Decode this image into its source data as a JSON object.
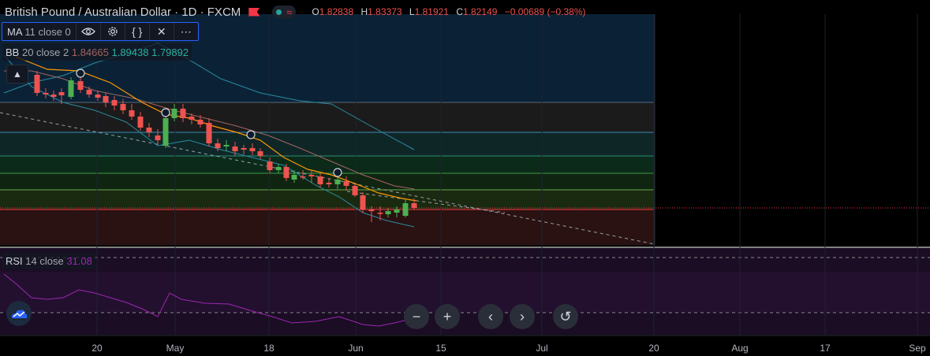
{
  "header": {
    "title": "British Pound / Australian Dollar · 1D · FXCM",
    "ohlc": [
      {
        "k": "O",
        "v": "1.82838"
      },
      {
        "k": "H",
        "v": "1.83373"
      },
      {
        "k": "L",
        "v": "1.81921"
      },
      {
        "k": "C",
        "v": "1.82149"
      }
    ],
    "change": "−0.00689 (−0.38%)"
  },
  "indicators": {
    "ma": {
      "name": "MA",
      "params": "11 close 0"
    },
    "bb": {
      "name": "BB",
      "params": "20 close 2",
      "v1": "1.84665",
      "v2": "1.89438",
      "v3": "1.79892"
    },
    "rsi": {
      "name": "RSI",
      "params": "14 close",
      "value": "31.08"
    }
  },
  "x_axis": [
    "20",
    "May",
    "18",
    "Jun",
    "15",
    "Jul",
    "20",
    "Aug",
    "17",
    "Sep"
  ],
  "icons": {
    "toolbar": [
      "eye-icon",
      "gear-icon",
      "braces-icon",
      "close-icon",
      "more-icon"
    ],
    "nav": [
      "zoom-out-icon",
      "zoom-in-icon",
      "scroll-left-icon",
      "scroll-right-icon",
      "reset-icon"
    ]
  },
  "colors": {
    "up": "#4caf50",
    "down": "#ef5350",
    "ma": "#ff9800",
    "bb_basis": "#a26460",
    "bb_band": "#2a8ba0",
    "rsi": "#9c27b0",
    "accent": "#2962ff"
  }
}
